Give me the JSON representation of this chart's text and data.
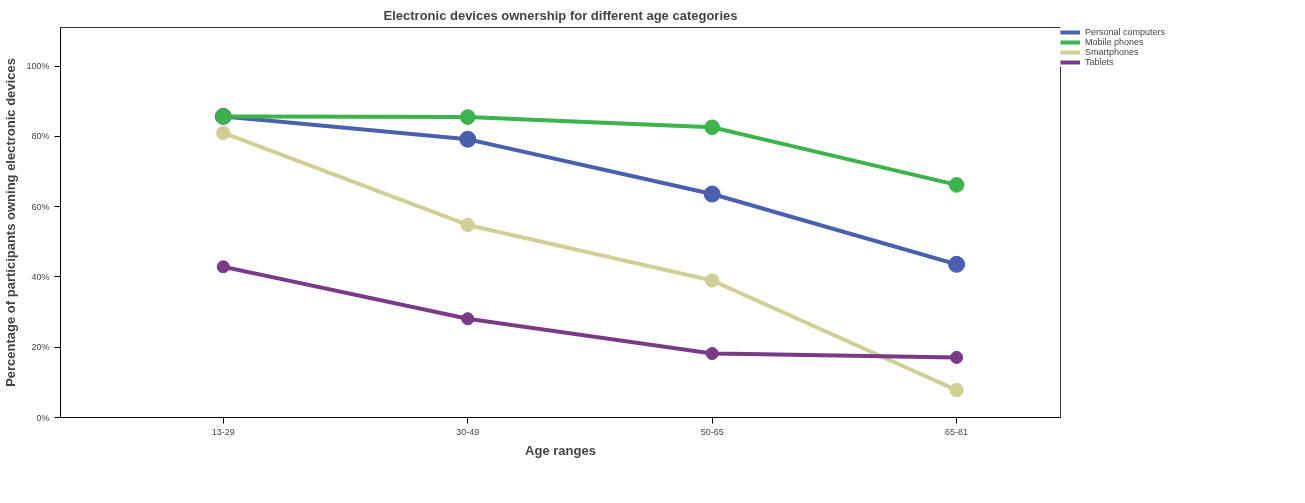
{
  "chart_data": {
    "type": "line",
    "title": "Electronic devices ownership for different age categories",
    "xlabel": "Age ranges",
    "ylabel": "Percentage of participants owning electronic devices",
    "categories": [
      "13-29",
      "30-49",
      "50-65",
      "65-81"
    ],
    "series": [
      {
        "name": "Personal computers",
        "color": "#4a5fad",
        "values": [
          85.7,
          79.2,
          63.6,
          43.6
        ]
      },
      {
        "name": "Mobile phones",
        "color": "#3cb44b",
        "values": [
          85.7,
          85.5,
          82.6,
          66.2
        ]
      },
      {
        "name": "Smartphones",
        "color": "#d2cf96",
        "values": [
          81.0,
          54.8,
          39.0,
          7.8
        ]
      },
      {
        "name": "Tablets",
        "color": "#7b3a88",
        "values": [
          42.9,
          28.1,
          18.2,
          17.1
        ]
      }
    ],
    "ylim": [
      0,
      111
    ],
    "yticks": [
      {
        "value": 0,
        "label": "0%"
      },
      {
        "value": 20,
        "label": "20%"
      },
      {
        "value": 40,
        "label": "40%"
      },
      {
        "value": 60,
        "label": "60%"
      },
      {
        "value": 80,
        "label": "80%"
      },
      {
        "value": 100,
        "label": "100%"
      }
    ],
    "grid": false,
    "legend": "top right",
    "marker": "circle",
    "line_style": "solid"
  }
}
